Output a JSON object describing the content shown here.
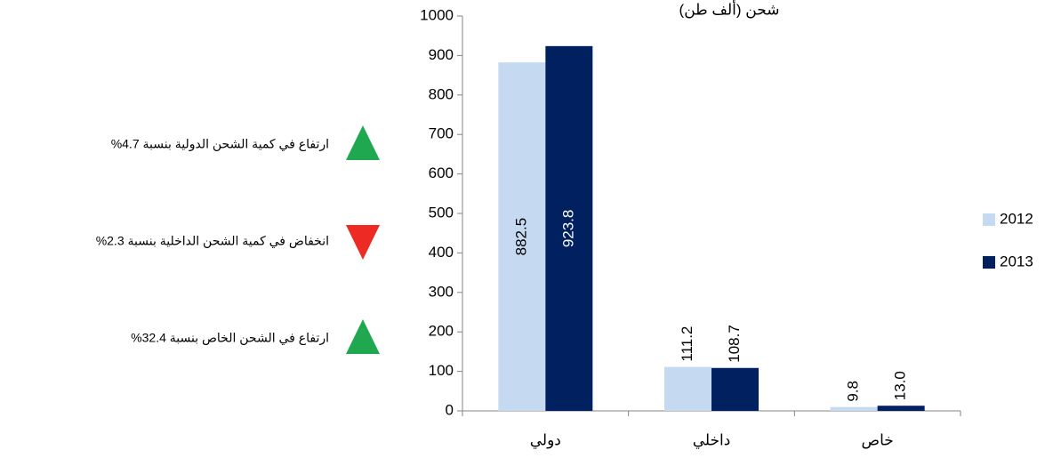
{
  "chart_data": {
    "type": "bar",
    "title": "شحن (ألف طن)",
    "categories": [
      "دولي",
      "داخلي",
      "خاص"
    ],
    "series": [
      {
        "name": "2012",
        "color": "#c5d9f1",
        "values": [
          882.5,
          111.2,
          9.8
        ],
        "value_labels": [
          "882.5",
          "111.2",
          "9.8"
        ]
      },
      {
        "name": "2013",
        "color": "#002060",
        "values": [
          923.8,
          108.7,
          13.0
        ],
        "value_labels": [
          "923.8",
          "108.7",
          "13.0"
        ]
      }
    ],
    "ylim": [
      0,
      1000
    ],
    "yticks": [
      0,
      100,
      200,
      300,
      400,
      500,
      600,
      700,
      800,
      900,
      1000
    ],
    "legend": "right",
    "annotations": [
      {
        "text": "ارتفاع في كمية الشحن الدولية بنسبة  4.7%",
        "direction": "up",
        "color": "#1fa84f"
      },
      {
        "text": "انخفاض في كمية الشحن الداخلية بنسبة  2.3%",
        "direction": "down",
        "color": "#ee2a24"
      },
      {
        "text": "ارتفاع في الشحن الخاص بنسبة  32.4%",
        "direction": "up",
        "color": "#1fa84f"
      }
    ]
  }
}
